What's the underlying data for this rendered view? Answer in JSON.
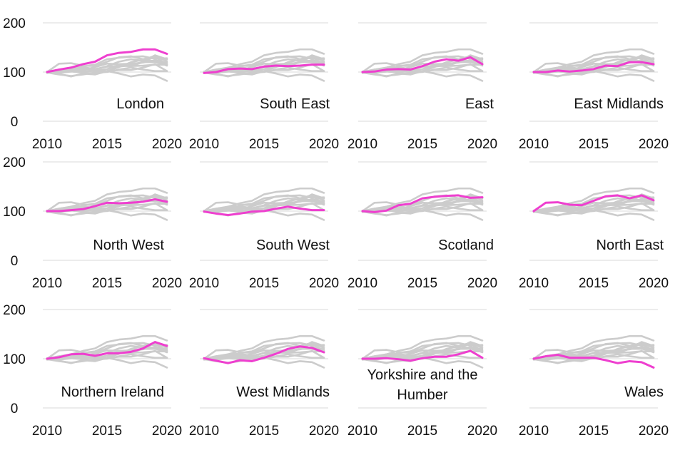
{
  "colors": {
    "highlight": "#ee3fcf",
    "background_series": "#cccccc",
    "gridline": "#d9d9d9",
    "text": "#111111"
  },
  "chart_data": {
    "type": "line",
    "layout": "small-multiples",
    "grid": "horizontal",
    "ylim": [
      0,
      200
    ],
    "yticks": [
      0,
      100,
      200
    ],
    "xlim": [
      2010,
      2020
    ],
    "xticks": [
      2010,
      2015,
      2020
    ],
    "x": [
      2010,
      2011,
      2012,
      2013,
      2014,
      2015,
      2016,
      2017,
      2018,
      2019,
      2020
    ],
    "series": [
      {
        "name": "London",
        "values": [
          100,
          105,
          109,
          116,
          121,
          134,
          139,
          141,
          146,
          146,
          137
        ]
      },
      {
        "name": "South East",
        "values": [
          98,
          100,
          106,
          107,
          106,
          111,
          113,
          112,
          113,
          115,
          115
        ]
      },
      {
        "name": "East",
        "values": [
          100,
          101,
          105,
          106,
          105,
          112,
          121,
          126,
          123,
          130,
          116
        ]
      },
      {
        "name": "East Midlands",
        "values": [
          100,
          100,
          103,
          101,
          103,
          106,
          113,
          112,
          120,
          120,
          116
        ]
      },
      {
        "name": "North West",
        "values": [
          100,
          100,
          102,
          104,
          110,
          117,
          116,
          117,
          119,
          124,
          119
        ]
      },
      {
        "name": "South West",
        "values": [
          99,
          95,
          92,
          95,
          99,
          100,
          105,
          109,
          105,
          102,
          102
        ]
      },
      {
        "name": "Scotland",
        "values": [
          100,
          98,
          101,
          112,
          115,
          126,
          129,
          131,
          132,
          127,
          128
        ]
      },
      {
        "name": "North East",
        "values": [
          100,
          117,
          118,
          113,
          112,
          121,
          130,
          132,
          126,
          132,
          122
        ]
      },
      {
        "name": "Northern Ireland",
        "values": [
          100,
          103,
          109,
          110,
          106,
          111,
          111,
          114,
          121,
          134,
          126
        ]
      },
      {
        "name": "West Midlands",
        "values": [
          101,
          96,
          91,
          97,
          95,
          102,
          110,
          120,
          125,
          122,
          113
        ]
      },
      {
        "name": "Yorkshire and the Humber",
        "values": [
          100,
          100,
          101,
          99,
          96,
          101,
          104,
          104,
          109,
          116,
          102
        ]
      },
      {
        "name": "Wales",
        "values": [
          100,
          105,
          108,
          102,
          102,
          102,
          97,
          91,
          95,
          93,
          82
        ]
      }
    ]
  }
}
